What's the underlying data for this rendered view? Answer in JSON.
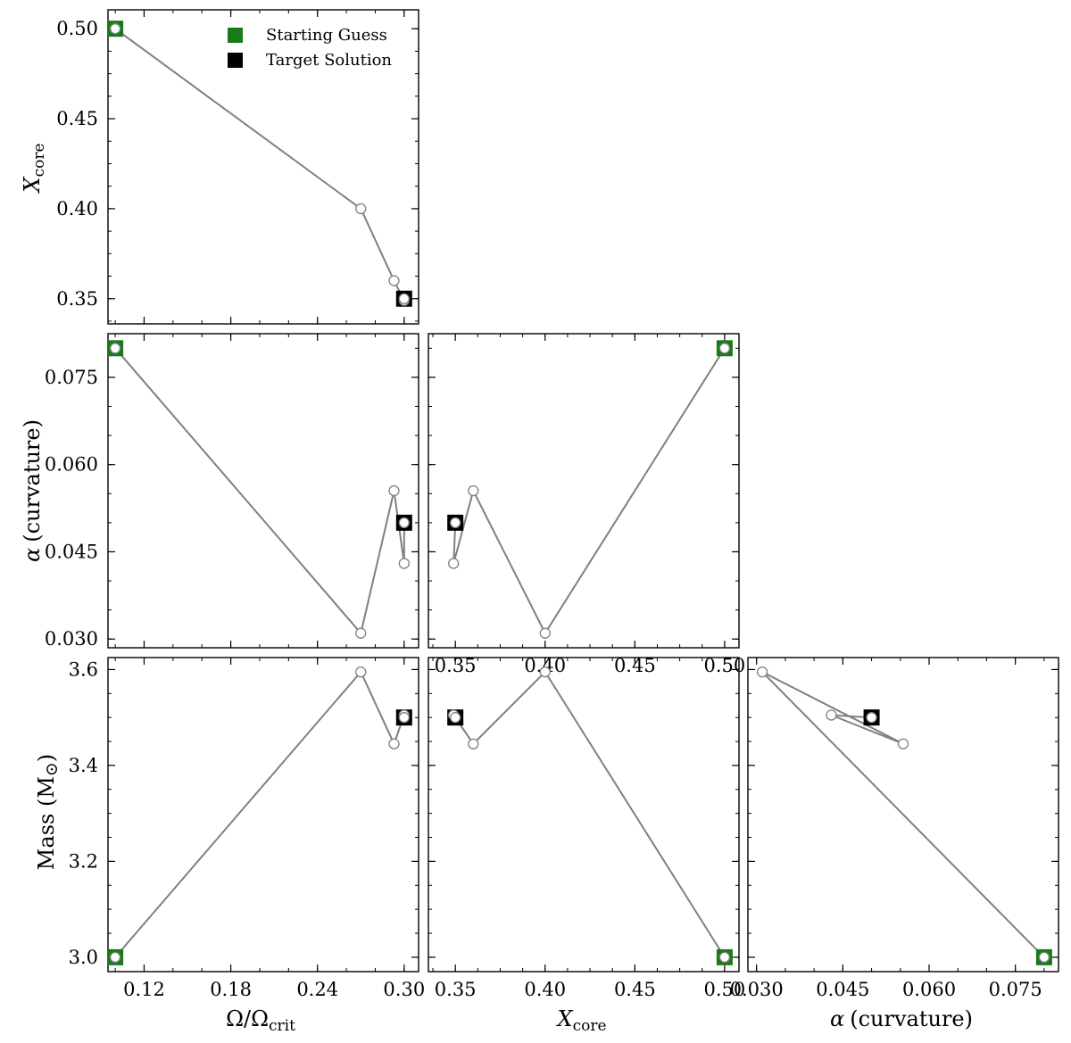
{
  "colors": {
    "path_line": "#808080",
    "start_marker": "#1a7a1a",
    "target_marker": "#000000",
    "point_fill": "#ffffff",
    "point_edge": "#808080"
  },
  "legend": {
    "start_label": "Starting Guess",
    "target_label": "Target Solution",
    "placement": "top-right"
  },
  "labels": {
    "omega_main": "Ω/Ω",
    "omega_sub": "crit",
    "xcore_main": "X",
    "xcore_sub": "core",
    "alpha_greek": "α",
    "alpha_rest": "(curvature)",
    "mass_main": "Mass (M",
    "mass_sun": "⊙",
    "mass_close": ")"
  },
  "chart_data": {
    "type": "scatter",
    "layout": "corner-plot",
    "parameters": {
      "omega": {
        "values": [
          0.1,
          0.27,
          0.293,
          0.3,
          0.3
        ]
      },
      "xcore": {
        "values": [
          0.5,
          0.4,
          0.36,
          0.349,
          0.35
        ]
      },
      "alpha": {
        "values": [
          0.08,
          0.031,
          0.0555,
          0.043,
          0.05
        ]
      },
      "mass": {
        "values": [
          3.0,
          3.595,
          3.445,
          3.505,
          3.5
        ]
      }
    },
    "start": {
      "omega": 0.1,
      "xcore": 0.5,
      "alpha": 0.08,
      "mass": 3.0
    },
    "target": {
      "omega": 0.3,
      "xcore": 0.35,
      "alpha": 0.05,
      "mass": 3.5
    },
    "panels": [
      {
        "x": "omega",
        "y": "xcore"
      },
      {
        "x": "omega",
        "y": "alpha"
      },
      {
        "x": "xcore",
        "y": "alpha"
      },
      {
        "x": "omega",
        "y": "mass"
      },
      {
        "x": "xcore",
        "y": "mass"
      },
      {
        "x": "alpha",
        "y": "mass"
      }
    ],
    "axes": {
      "omega": {
        "range": [
          0.095,
          0.31
        ],
        "ticks": [
          "0.12",
          "0.18",
          "0.24",
          "0.30"
        ],
        "tick_values": [
          0.12,
          0.18,
          0.24,
          0.3
        ],
        "minor_step": 0.02
      },
      "xcore": {
        "range": [
          0.335,
          0.508
        ],
        "ticks": [
          "0.35",
          "0.40",
          "0.45",
          "0.50"
        ],
        "tick_values": [
          0.35,
          0.4,
          0.45,
          0.5
        ],
        "minor_step": 0.0125
      },
      "alpha": {
        "range": [
          0.0285,
          0.0825
        ],
        "ticks": [
          "0.030",
          "0.045",
          "0.060",
          "0.075"
        ],
        "tick_values": [
          0.03,
          0.045,
          0.06,
          0.075
        ],
        "minor_step": 0.005
      },
      "mass": {
        "range": [
          2.97,
          3.625
        ],
        "ticks": [
          "3.0",
          "3.2",
          "3.4",
          "3.6"
        ],
        "tick_values": [
          3.0,
          3.2,
          3.4,
          3.6
        ],
        "minor_step": 0.05
      },
      "xcore_upper": {
        "range": [
          0.336,
          0.5105
        ],
        "ticks": [
          "0.35",
          "0.40",
          "0.45",
          "0.50"
        ],
        "tick_values": [
          0.35,
          0.4,
          0.45,
          0.5
        ],
        "minor_step": 0.0125
      }
    },
    "grid": false
  }
}
